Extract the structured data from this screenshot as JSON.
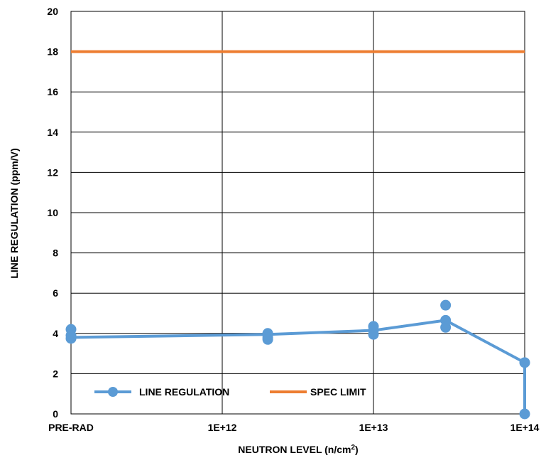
{
  "chart_data": {
    "type": "line",
    "xlabel": "NEUTRON LEVEL (n/cm",
    "xlabel_sup": "2",
    "xlabel_end": ")",
    "ylabel": "LINE REGULATION (ppm/V)",
    "x_ticks": [
      "PRE-RAD",
      "1E+12",
      "1E+13",
      "1E+14"
    ],
    "y_ticks": [
      "0",
      "2",
      "4",
      "6",
      "8",
      "10",
      "12",
      "14",
      "16",
      "18",
      "20"
    ],
    "ylim": [
      0,
      20
    ],
    "grid": true,
    "legend_position": "bottom-left inside",
    "series": [
      {
        "name": "LINE REGULATION",
        "color": "#5B9BD5",
        "marker": "circle",
        "points": [
          {
            "x": "PRE-RAD",
            "y": [
              4.2,
              3.9,
              3.75
            ]
          },
          {
            "x": "2E+12",
            "y": [
              4.0,
              3.8,
              3.7
            ]
          },
          {
            "x": "1E+13",
            "y": [
              4.35,
              4.15,
              3.95
            ]
          },
          {
            "x": "3E+13",
            "y": [
              5.4,
              4.65,
              4.3
            ]
          },
          {
            "x": "1E+14",
            "y": [
              2.55,
              0.0
            ]
          }
        ],
        "line": [
          {
            "x": "PRE-RAD",
            "y": 3.8
          },
          {
            "x": "2E+12",
            "y": 3.95
          },
          {
            "x": "1E+13",
            "y": 4.15
          },
          {
            "x": "3E+13",
            "y": 4.65
          },
          {
            "x": "1E+14",
            "y": 2.55
          },
          {
            "x": "1E+14",
            "y": 0.0
          }
        ]
      },
      {
        "name": "SPEC LIMIT",
        "color": "#ED7D31",
        "values": [
          18,
          18
        ]
      }
    ]
  }
}
